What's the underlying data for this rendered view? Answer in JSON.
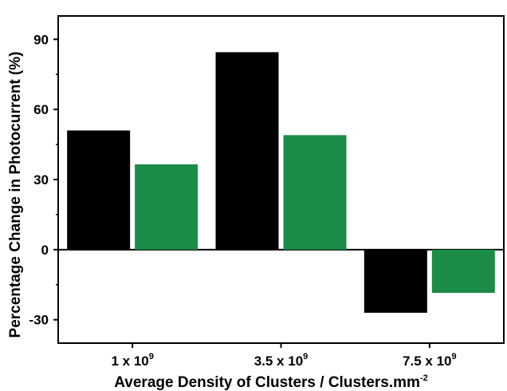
{
  "chart_data": {
    "type": "bar",
    "title": "",
    "xlabel": {
      "text": "Average Density of Clusters / Clusters.mm",
      "superscript": "-2"
    },
    "ylabel": "Percentage Change in Photocurrent (%)",
    "ylim": [
      -40,
      100
    ],
    "yticks": [
      -30,
      0,
      30,
      60,
      90
    ],
    "categories": [
      {
        "base": "1 x 10",
        "exp": "9"
      },
      {
        "base": "3.5 x 10",
        "exp": "9"
      },
      {
        "base": "7.5 x 10",
        "exp": "9"
      }
    ],
    "series": [
      {
        "color": "#000000",
        "values": [
          51,
          84.5,
          -27
        ]
      },
      {
        "color": "#1a8c47",
        "values": [
          36.5,
          49,
          -18.5
        ]
      }
    ],
    "grid": false,
    "legend": "none"
  }
}
